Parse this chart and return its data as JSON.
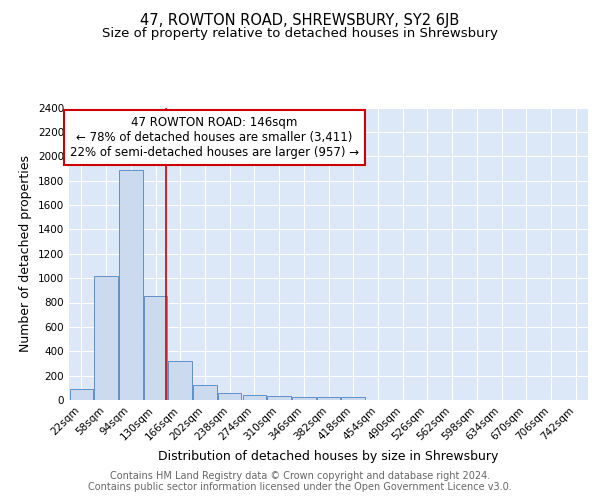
{
  "title": "47, ROWTON ROAD, SHREWSBURY, SY2 6JB",
  "subtitle": "Size of property relative to detached houses in Shrewsbury",
  "xlabel": "Distribution of detached houses by size in Shrewsbury",
  "ylabel": "Number of detached properties",
  "bin_labels": [
    "22sqm",
    "58sqm",
    "94sqm",
    "130sqm",
    "166sqm",
    "202sqm",
    "238sqm",
    "274sqm",
    "310sqm",
    "346sqm",
    "382sqm",
    "418sqm",
    "454sqm",
    "490sqm",
    "526sqm",
    "562sqm",
    "598sqm",
    "634sqm",
    "670sqm",
    "706sqm",
    "742sqm"
  ],
  "bar_heights": [
    90,
    1020,
    1890,
    855,
    320,
    120,
    55,
    45,
    35,
    25,
    25,
    25,
    0,
    0,
    0,
    0,
    0,
    0,
    0,
    0,
    0
  ],
  "bar_color": "#ccdaf0",
  "bar_edge_color": "#6090c8",
  "vline_color": "#cc0000",
  "annotation_line1": "47 ROWTON ROAD: 146sqm",
  "annotation_line2": "← 78% of detached houses are smaller (3,411)",
  "annotation_line3": "22% of semi-detached houses are larger (957) →",
  "annotation_box_color": "#ffffff",
  "annotation_box_edge": "#cc0000",
  "ylim": [
    0,
    2400
  ],
  "yticks": [
    0,
    200,
    400,
    600,
    800,
    1000,
    1200,
    1400,
    1600,
    1800,
    2000,
    2200,
    2400
  ],
  "footer_text": "Contains HM Land Registry data © Crown copyright and database right 2024.\nContains public sector information licensed under the Open Government Licence v3.0.",
  "plot_bg_color": "#dce8f8",
  "grid_color": "#ffffff",
  "title_fontsize": 10.5,
  "subtitle_fontsize": 9.5,
  "axis_label_fontsize": 9,
  "tick_fontsize": 7.5,
  "footer_fontsize": 7
}
